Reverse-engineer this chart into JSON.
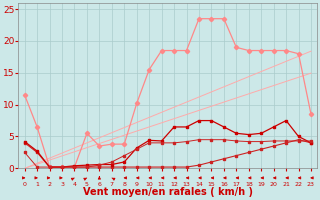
{
  "x": [
    0,
    1,
    2,
    3,
    4,
    5,
    6,
    7,
    8,
    9,
    10,
    11,
    12,
    13,
    14,
    15,
    16,
    17,
    18,
    19,
    20,
    21,
    22,
    23
  ],
  "bg_color": "#cce8e8",
  "grid_color": "#aacccc",
  "xlabel": "Vent moyen/en rafales ( km/h )",
  "xlabel_color": "#cc0000",
  "tick_color": "#cc0000",
  "arrow_color": "#cc0000",
  "ylim": [
    0,
    26
  ],
  "yticks": [
    0,
    5,
    10,
    15,
    20,
    25
  ],
  "line_pink_top": {
    "y": [
      11.5,
      6.5,
      0.2,
      0.2,
      0.2,
      5.5,
      3.5,
      3.8,
      3.8,
      10.2,
      15.5,
      18.5,
      18.5,
      18.5,
      23.5,
      23.5,
      23.5,
      19.0,
      18.5,
      18.5,
      18.5,
      18.5,
      18.0,
      8.5
    ],
    "color": "#ff8888",
    "lw": 0.9,
    "marker": "D",
    "ms": 2.2
  },
  "line_diag1": {
    "y": [
      0.0,
      0.8,
      1.6,
      2.4,
      3.2,
      4.0,
      4.8,
      5.6,
      6.4,
      7.2,
      8.0,
      8.8,
      9.6,
      10.4,
      11.2,
      12.0,
      12.8,
      13.6,
      14.4,
      15.2,
      16.0,
      16.8,
      17.6,
      18.4
    ],
    "color": "#ffaaaa",
    "lw": 0.7
  },
  "line_diag2": {
    "y": [
      0.0,
      0.65,
      1.3,
      1.95,
      2.6,
      3.25,
      3.9,
      4.55,
      5.2,
      5.85,
      6.5,
      7.15,
      7.8,
      8.45,
      9.1,
      9.75,
      10.4,
      11.05,
      11.7,
      12.35,
      13.0,
      13.65,
      14.3,
      14.95
    ],
    "color": "#ffaaaa",
    "lw": 0.7
  },
  "line_dark1": {
    "y": [
      4.0,
      2.5,
      0.2,
      0.2,
      0.2,
      0.2,
      0.2,
      0.2,
      0.2,
      0.2,
      0.2,
      0.2,
      0.2,
      0.2,
      0.5,
      1.0,
      1.5,
      2.0,
      2.5,
      3.0,
      3.5,
      4.0,
      4.5,
      4.0
    ],
    "color": "#cc2222",
    "lw": 0.8,
    "marker": "s",
    "ms": 1.8
  },
  "line_dark2": {
    "y": [
      4.2,
      2.7,
      0.2,
      0.2,
      0.4,
      0.5,
      0.6,
      0.6,
      1.0,
      3.2,
      4.4,
      4.3,
      6.5,
      6.5,
      7.5,
      7.5,
      6.5,
      5.5,
      5.3,
      5.5,
      6.5,
      7.5,
      5.0,
      4.0
    ],
    "color": "#cc0000",
    "lw": 0.9,
    "marker": "s",
    "ms": 2.0
  },
  "line_dark3": {
    "y": [
      2.5,
      0.2,
      0.2,
      0.2,
      0.2,
      0.2,
      0.5,
      1.0,
      2.0,
      3.0,
      4.0,
      4.0,
      4.0,
      4.2,
      4.5,
      4.5,
      4.5,
      4.3,
      4.2,
      4.2,
      4.3,
      4.3,
      4.3,
      4.3
    ],
    "color": "#cc2222",
    "lw": 0.7,
    "marker": "s",
    "ms": 1.5
  },
  "arrow_directions": [
    0,
    0,
    0,
    0,
    45,
    45,
    90,
    135,
    180,
    180,
    180,
    180,
    180,
    180,
    180,
    180,
    180,
    180,
    180,
    180,
    180,
    180,
    180,
    180
  ]
}
